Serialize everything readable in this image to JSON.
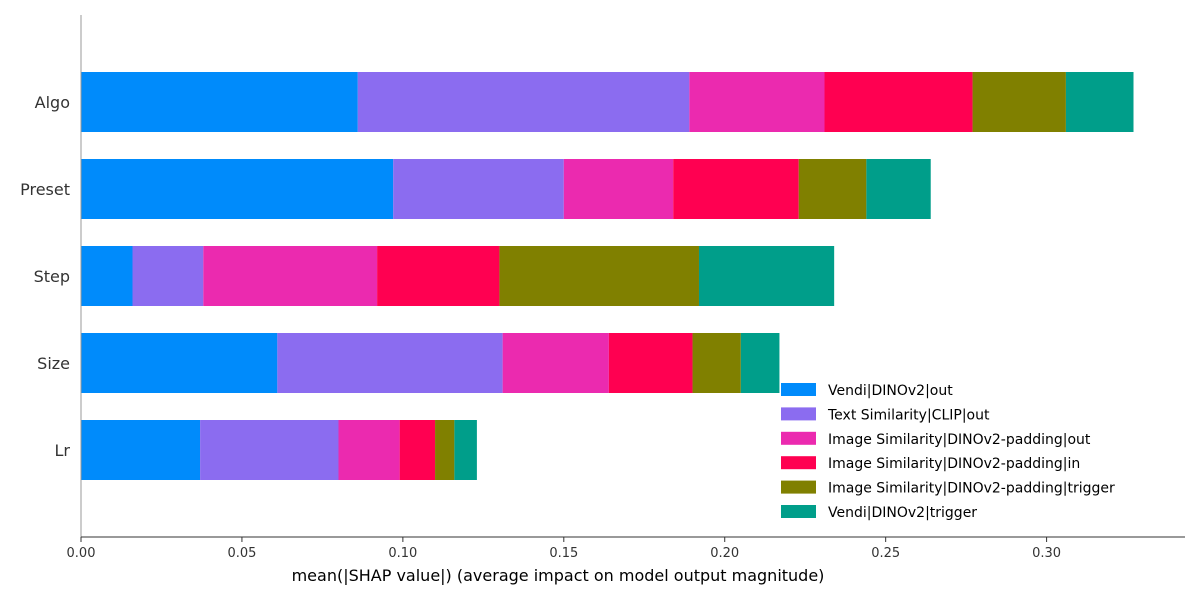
{
  "chart_data": {
    "type": "bar",
    "orientation": "horizontal",
    "stacked": true,
    "categories": [
      "Algo",
      "Preset",
      "Step",
      "Size",
      "Lr"
    ],
    "series": [
      {
        "name": "Vendi|DINOv2|out",
        "color": "#008bfb",
        "values": [
          0.086,
          0.097,
          0.016,
          0.061,
          0.037
        ]
      },
      {
        "name": "Text Similarity|CLIP|out",
        "color": "#8b6cf0",
        "values": [
          0.103,
          0.053,
          0.022,
          0.07,
          0.043
        ]
      },
      {
        "name": "Image Similarity|DINOv2-padding|out",
        "color": "#eb2aaf",
        "values": [
          0.042,
          0.034,
          0.054,
          0.033,
          0.019
        ]
      },
      {
        "name": "Image Similarity|DINOv2-padding|in",
        "color": "#ff0051",
        "values": [
          0.046,
          0.039,
          0.038,
          0.026,
          0.011
        ]
      },
      {
        "name": "Image Similarity|DINOv2-padding|trigger",
        "color": "#808000",
        "values": [
          0.029,
          0.021,
          0.062,
          0.015,
          0.006
        ]
      },
      {
        "name": "Vendi|DINOv2|trigger",
        "color": "#009e8a",
        "values": [
          0.021,
          0.02,
          0.042,
          0.012,
          0.007
        ]
      }
    ],
    "xlabel": "mean(|SHAP value|) (average impact on model output magnitude)",
    "xticks": [
      "0.00",
      "0.05",
      "0.10",
      "0.15",
      "0.20",
      "0.25",
      "0.30"
    ],
    "xlim": [
      0,
      0.343
    ],
    "legend_position": "lower-right",
    "grid": false
  }
}
